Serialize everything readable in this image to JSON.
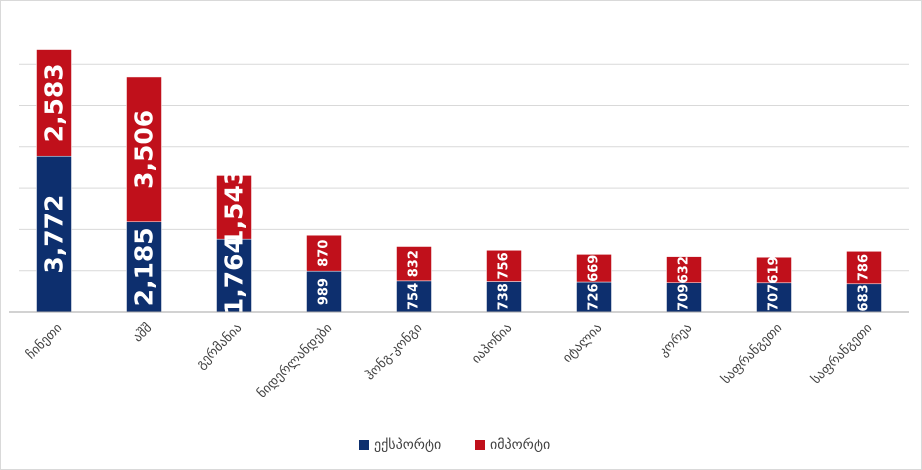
{
  "chart_data": {
    "type": "bar",
    "stacked": true,
    "categories": [
      "ჩინეთი",
      "აშშ",
      "გერმანია",
      "ნიდერლანდები",
      "ჰონგ-კონგი",
      "იაპონია",
      "იტალია",
      "კორეა",
      "საფრანგეთი",
      "საფრანგეთი"
    ],
    "series": [
      {
        "name": "ექსპორტი",
        "color": "#0d2f6e",
        "values": [
          3772,
          2185,
          1764,
          989,
          754,
          738,
          726,
          709,
          707,
          683
        ]
      },
      {
        "name": "იმპორტი",
        "color": "#c0101b",
        "values": [
          2583,
          3506,
          1543,
          870,
          832,
          756,
          669,
          632,
          619,
          786
        ]
      }
    ],
    "value_labels": [
      [
        "3,772",
        "2,185",
        "1,764",
        "989",
        "754",
        "738",
        "726",
        "709",
        "707",
        "683"
      ],
      [
        "2,583",
        "3,506",
        "1,543",
        "870",
        "832",
        "756",
        "669",
        "632",
        "619",
        "786"
      ]
    ],
    "ylim": [
      0,
      6500
    ],
    "ytick_step": 1000,
    "grid": true,
    "legend": "bottom-center",
    "title": "",
    "xlabel": "",
    "ylabel": ""
  }
}
